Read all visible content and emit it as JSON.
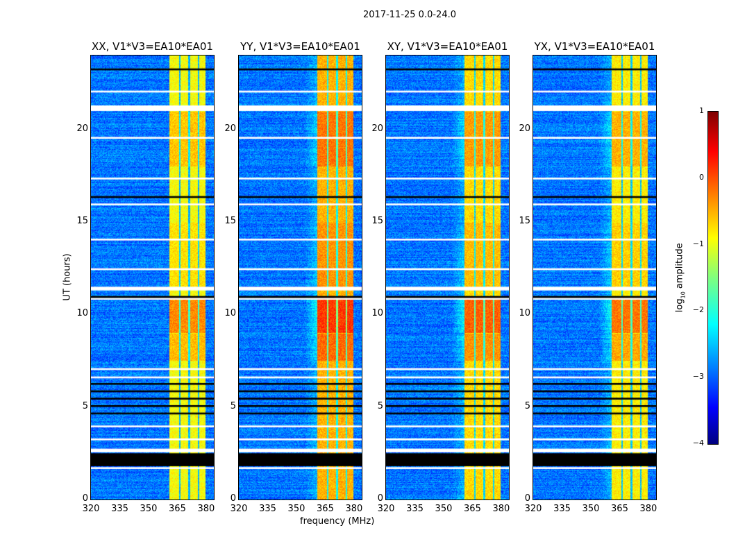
{
  "chart_data": {
    "type": "heatmap",
    "title": "2017-11-25 0.0-24.0",
    "xlabel": "frequency (MHz)",
    "ylabel": "UT (hours)",
    "xlim": [
      320,
      384
    ],
    "ylim": [
      0,
      24
    ],
    "xticks": [
      "320",
      "335",
      "350",
      "365",
      "380"
    ],
    "yticks": [
      "0",
      "5",
      "10",
      "15",
      "20"
    ],
    "colorbar": {
      "label_prefix": "log",
      "label_sub": "10",
      "label_suffix": " amplitude",
      "range": [
        -4,
        1
      ],
      "ticks": [
        "1",
        "0",
        "−1",
        "−2",
        "−3",
        "−4"
      ],
      "colormap": "jet"
    },
    "panels": [
      {
        "title": "XX, V1*V3=EA10*EA01",
        "band_level": -0.9,
        "halo": false
      },
      {
        "title": "YY, V1*V3=EA10*EA01",
        "band_level": -0.5,
        "halo": true
      },
      {
        "title": "XY, V1*V3=EA10*EA01",
        "band_level": -0.7,
        "halo": true
      },
      {
        "title": "YX, V1*V3=EA10*EA01",
        "band_level": -0.8,
        "halo": true
      }
    ],
    "background_level": -2.8,
    "band_range_mhz": [
      360.5,
      379.5
    ],
    "band_gaps_mhz": [
      366,
      371,
      376
    ],
    "flagged_white_hours": [
      [
        21.0,
        21.3
      ],
      [
        2.55,
        2.75
      ],
      [
        1.65,
        1.75
      ],
      [
        11.3,
        11.5
      ],
      [
        12.4,
        12.5
      ],
      [
        14.0,
        14.1
      ],
      [
        15.9,
        16.0
      ],
      [
        17.3,
        17.4
      ],
      [
        3.2,
        3.3
      ],
      [
        3.9,
        4.0
      ],
      [
        6.55,
        6.65
      ],
      [
        7.0,
        7.1
      ],
      [
        10.8,
        10.9
      ],
      [
        22.0,
        22.1
      ],
      [
        19.5,
        19.6
      ]
    ],
    "flagged_black_hours": [
      [
        1.8,
        2.5
      ],
      [
        5.0,
        5.1
      ],
      [
        5.4,
        5.5
      ],
      [
        5.8,
        5.9
      ],
      [
        6.2,
        6.3
      ],
      [
        4.6,
        4.7
      ],
      [
        16.3,
        16.4
      ],
      [
        10.9,
        11.0
      ],
      [
        23.2,
        23.3
      ]
    ]
  }
}
